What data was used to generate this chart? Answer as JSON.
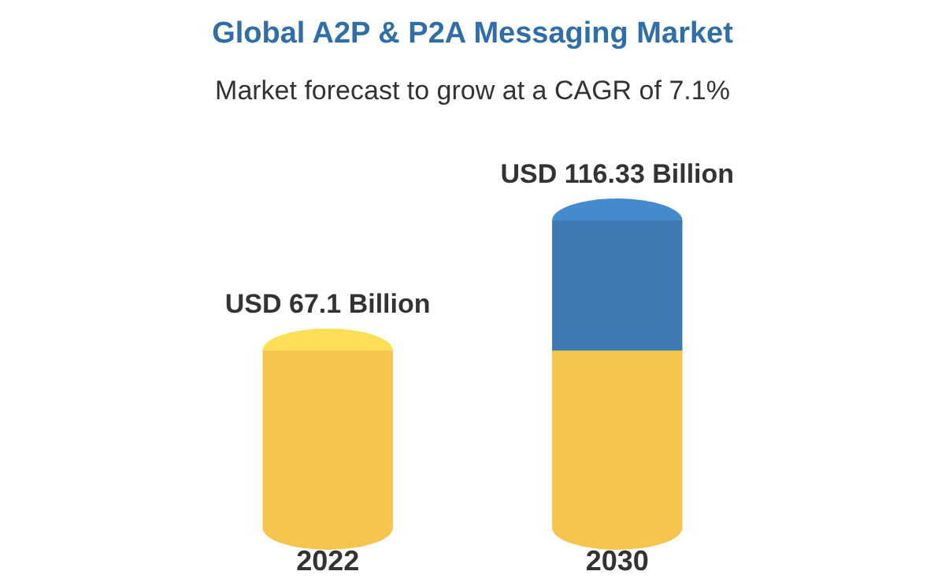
{
  "chart_data": {
    "type": "bar",
    "title": "Global A2P & P2A Messaging Market",
    "subtitle": "Market forecast to grow at a CAGR of 7.1%",
    "categories": [
      "2022",
      "2030"
    ],
    "stacked": true,
    "series": [
      {
        "color": "#f6c54e",
        "values": [
          67.1,
          67.1
        ],
        "value_labels": [
          "USD 67.1 Billion",
          null
        ]
      },
      {
        "color": "#3d7ab3",
        "values": [
          null,
          49.23
        ]
      }
    ],
    "totals": [
      null,
      "USD 116.33 Billion"
    ]
  }
}
